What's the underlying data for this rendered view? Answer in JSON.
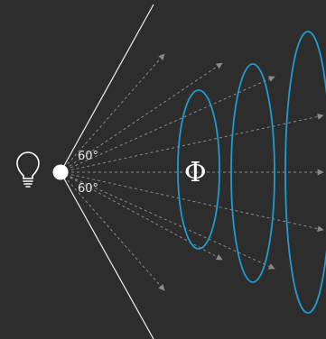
{
  "diagram": {
    "angle_upper": "60°",
    "angle_lower": "60°",
    "flux_symbol": "Φ",
    "icons": [
      "lightbulb-icon"
    ],
    "colors": {
      "background": "#2d2d2d",
      "cone_lines": "#ffffff",
      "rays": "#8a8a8a",
      "ellipses": "#1f9bd0",
      "source_point": "#ffffff",
      "text": "#e6e6e6"
    }
  }
}
